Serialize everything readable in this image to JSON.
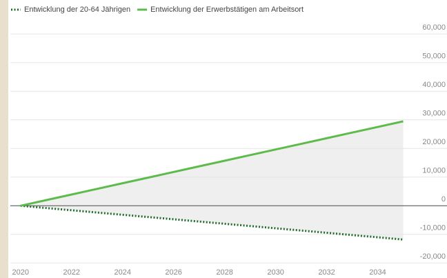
{
  "chart_data": {
    "type": "line",
    "x": [
      2020,
      2021,
      2022,
      2023,
      2024,
      2025,
      2026,
      2027,
      2028,
      2029,
      2030,
      2031,
      2032,
      2033,
      2034,
      2035
    ],
    "series": [
      {
        "name": "Entwicklung der 20-64 Jährigen",
        "color": "#1f6b2c",
        "style": "dotted",
        "values": [
          0,
          -790,
          -1570,
          -2360,
          -3150,
          -3930,
          -4720,
          -5510,
          -6290,
          -7080,
          -7870,
          -8650,
          -9440,
          -10230,
          -11010,
          -11800
        ]
      },
      {
        "name": "Entwicklung der Erwerbstätigen am Arbeitsort",
        "color": "#5dbb4c",
        "style": "solid",
        "values": [
          0,
          1970,
          3930,
          5900,
          7870,
          9830,
          11800,
          13770,
          15730,
          17700,
          19670,
          21630,
          23600,
          25570,
          27530,
          29500
        ]
      }
    ],
    "area_between": true,
    "area_color": "#efefef",
    "xlim": [
      2019.6,
      2035.5
    ],
    "xticks": [
      2020,
      2022,
      2024,
      2026,
      2028,
      2030,
      2032,
      2034
    ],
    "ylim": [
      -22100,
      62000
    ],
    "yticks": [
      {
        "value": 60000,
        "label": "60,000"
      },
      {
        "value": 50000,
        "label": "50,000"
      },
      {
        "value": 40000,
        "label": "40,000"
      },
      {
        "value": 30000,
        "label": "30,000"
      },
      {
        "value": 20000,
        "label": "20,000"
      },
      {
        "value": 10000,
        "label": "10,000"
      },
      0,
      {
        "value": -10000,
        "label": "-10,000"
      },
      {
        "value": -20000,
        "label": "-20,000"
      }
    ],
    "grid": true
  }
}
